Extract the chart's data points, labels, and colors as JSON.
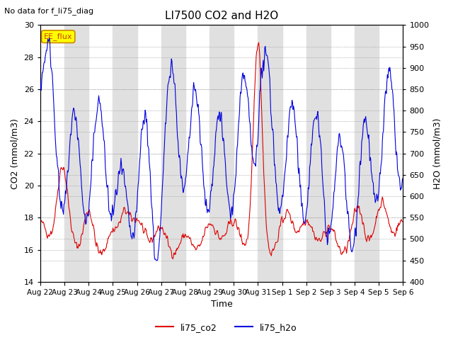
{
  "title": "LI7500 CO2 and H2O",
  "subtitle": "No data for f_li75_diag",
  "xlabel": "Time",
  "ylabel_left": "CO2 (mmol/m3)",
  "ylabel_right": "H2O (mmol/m3)",
  "ylim_left": [
    14,
    30
  ],
  "ylim_right": [
    400,
    1000
  ],
  "yticks_left": [
    14,
    16,
    18,
    20,
    22,
    24,
    26,
    28,
    30
  ],
  "yticks_right": [
    400,
    450,
    500,
    550,
    600,
    650,
    700,
    750,
    800,
    850,
    900,
    950,
    1000
  ],
  "xtick_labels": [
    "Aug 22",
    "Aug 23",
    "Aug 24",
    "Aug 25",
    "Aug 26",
    "Aug 27",
    "Aug 28",
    "Aug 29",
    "Aug 30",
    "Aug 31",
    "Sep 1",
    "Sep 2",
    "Sep 3",
    "Sep 4",
    "Sep 5",
    "Sep 6"
  ],
  "color_co2": "#dd0000",
  "color_h2o": "#0000dd",
  "legend_label_co2": "li75_co2",
  "legend_label_h2o": "li75_h2o",
  "shade_color": "#e0e0e0",
  "annotation_box_color": "#ffff00",
  "annotation_box_text": "EE_flux",
  "annotation_text_color": "#cc4400",
  "background_color": "#ffffff",
  "figwidth": 6.4,
  "figheight": 4.8,
  "dpi": 100
}
